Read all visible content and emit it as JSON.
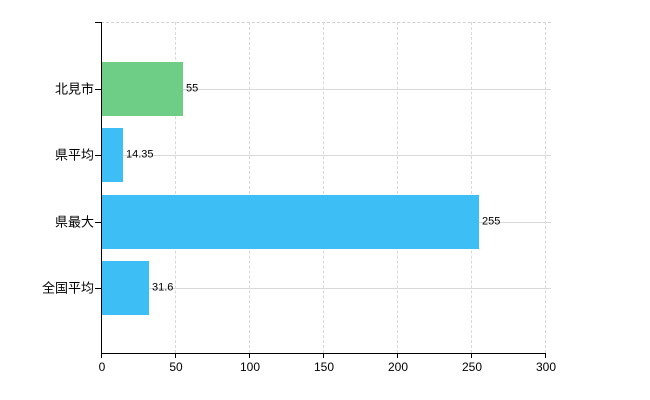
{
  "chart_data": {
    "type": "bar",
    "orientation": "horizontal",
    "categories": [
      "北見市",
      "県平均",
      "県最大",
      "全国平均"
    ],
    "values": [
      55,
      14.35,
      255,
      31.6
    ],
    "value_labels": [
      "55",
      "14.35",
      "255",
      "31.6"
    ],
    "bar_colors": [
      "#6fce85",
      "#3dbff5",
      "#3dbff5",
      "#3dbff5"
    ],
    "bar_textures": [
      "dots",
      "checker",
      "checker",
      "checker"
    ],
    "x_ticks": [
      0,
      50,
      100,
      150,
      200,
      250,
      300
    ],
    "x_tick_labels": [
      "0",
      "50",
      "100",
      "150",
      "200",
      "250",
      "300"
    ],
    "xlim": [
      0,
      300
    ],
    "grid": true,
    "legend": "none",
    "title": ""
  },
  "colors": {
    "background": "#ffffff",
    "axis": "#000000",
    "gridline": "#d9d9d9",
    "top_border": "#d0d0d0",
    "text": "#000000",
    "green_bar": "#6fce85",
    "blue_bar": "#3dbff5"
  }
}
